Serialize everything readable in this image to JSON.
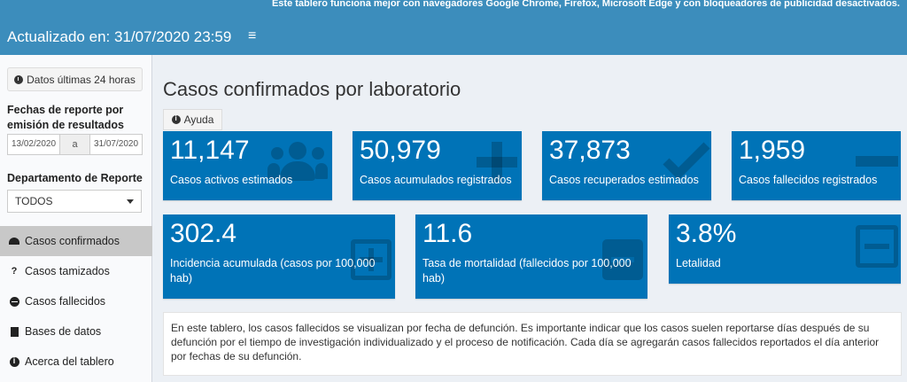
{
  "banner": {
    "text": "Este tablero funciona mejor con navegadores Google Chrome, Firefox, Microsoft Edge y con bloqueadores de publicidad desactivados."
  },
  "header": {
    "title": "Actualizado en: 31/07/2020 23:59",
    "menu_icon": "hamburger-icon"
  },
  "sidebar": {
    "last24_label": "Datos últimas 24 horas",
    "dates_label": "Fechas de reporte por emisión de resultados",
    "date_from": "13/02/2020",
    "date_sep": "a",
    "date_to": "31/07/2020",
    "dept_label": "Departamento de Reporte",
    "dept_value": "TODOS",
    "nav": [
      {
        "label": "Casos confirmados",
        "icon": "dashboard-icon",
        "active": true
      },
      {
        "label": "Casos tamizados",
        "icon": "question-icon",
        "active": false
      },
      {
        "label": "Casos fallecidos",
        "icon": "minus-circle-icon",
        "active": false
      },
      {
        "label": "Bases de datos",
        "icon": "file-icon",
        "active": false
      },
      {
        "label": "Acerca del tablero",
        "icon": "info-icon",
        "active": false
      }
    ]
  },
  "main": {
    "title": "Casos confirmados por laboratorio",
    "help_label": "Ayuda",
    "boxes_row1": [
      {
        "value": "11,147",
        "label": "Casos activos estimados",
        "icon": "users-icon"
      },
      {
        "value": "50,979",
        "label": "Casos acumulados registrados",
        "icon": "plus-icon"
      },
      {
        "value": "37,873",
        "label": "Casos recuperados estimados",
        "icon": "check-icon"
      },
      {
        "value": "1,959",
        "label": "Casos fallecidos registrados",
        "icon": "minus-icon"
      }
    ],
    "boxes_row2": [
      {
        "value": "302.4",
        "label": "Incidencia acumulada (casos por 100,000 hab)",
        "icon": "plus-square-icon"
      },
      {
        "value": "11.6",
        "label": "Tasa de mortalidad (fallecidos por 100,000 hab)",
        "icon": "minus-square-filled-icon"
      },
      {
        "value": "3.8%",
        "label": "Letalidad",
        "icon": "minus-square-icon"
      }
    ],
    "note": "En este tablero, los casos fallecidos se visualizan por fecha de defunción. Es importante indicar que los casos suelen reportarse días después de su defunción por el tiempo de investigación individualizado y el proceso de notificación. Cada día se agregarán casos fallecidos reportados el día anterior por fechas de su defunción."
  },
  "colors": {
    "header": "#3c8dbc",
    "box": "#0073b7",
    "sidebar_active": "#c8c8c8",
    "background": "#ecf0f5"
  }
}
